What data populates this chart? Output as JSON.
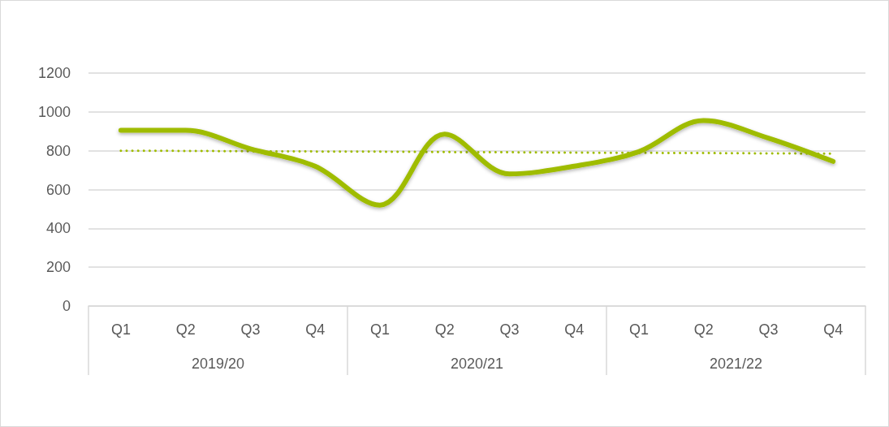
{
  "chart_data": {
    "type": "line",
    "categories": [
      "Q1",
      "Q2",
      "Q3",
      "Q4",
      "Q1",
      "Q2",
      "Q3",
      "Q4",
      "Q1",
      "Q2",
      "Q3",
      "Q4"
    ],
    "annotations": [
      "2019/20",
      "2020/21",
      "2021/22"
    ],
    "series": [
      {
        "color": "#9fbc00",
        "values": [
          905,
          905,
          810,
          720,
          520,
          885,
          680,
          720,
          795,
          955,
          865,
          745
        ],
        "line_style": "solid"
      },
      {
        "color": "#9fbc00",
        "values": [
          800,
          799,
          797,
          796,
          795,
          793,
          792,
          790,
          789,
          788,
          786,
          785
        ],
        "line_style": "dotted"
      }
    ],
    "ylim": [
      0,
      1200
    ],
    "yticks": [
      0,
      200,
      400,
      600,
      800,
      1000,
      1200
    ],
    "grid": "y",
    "marker": "none"
  }
}
